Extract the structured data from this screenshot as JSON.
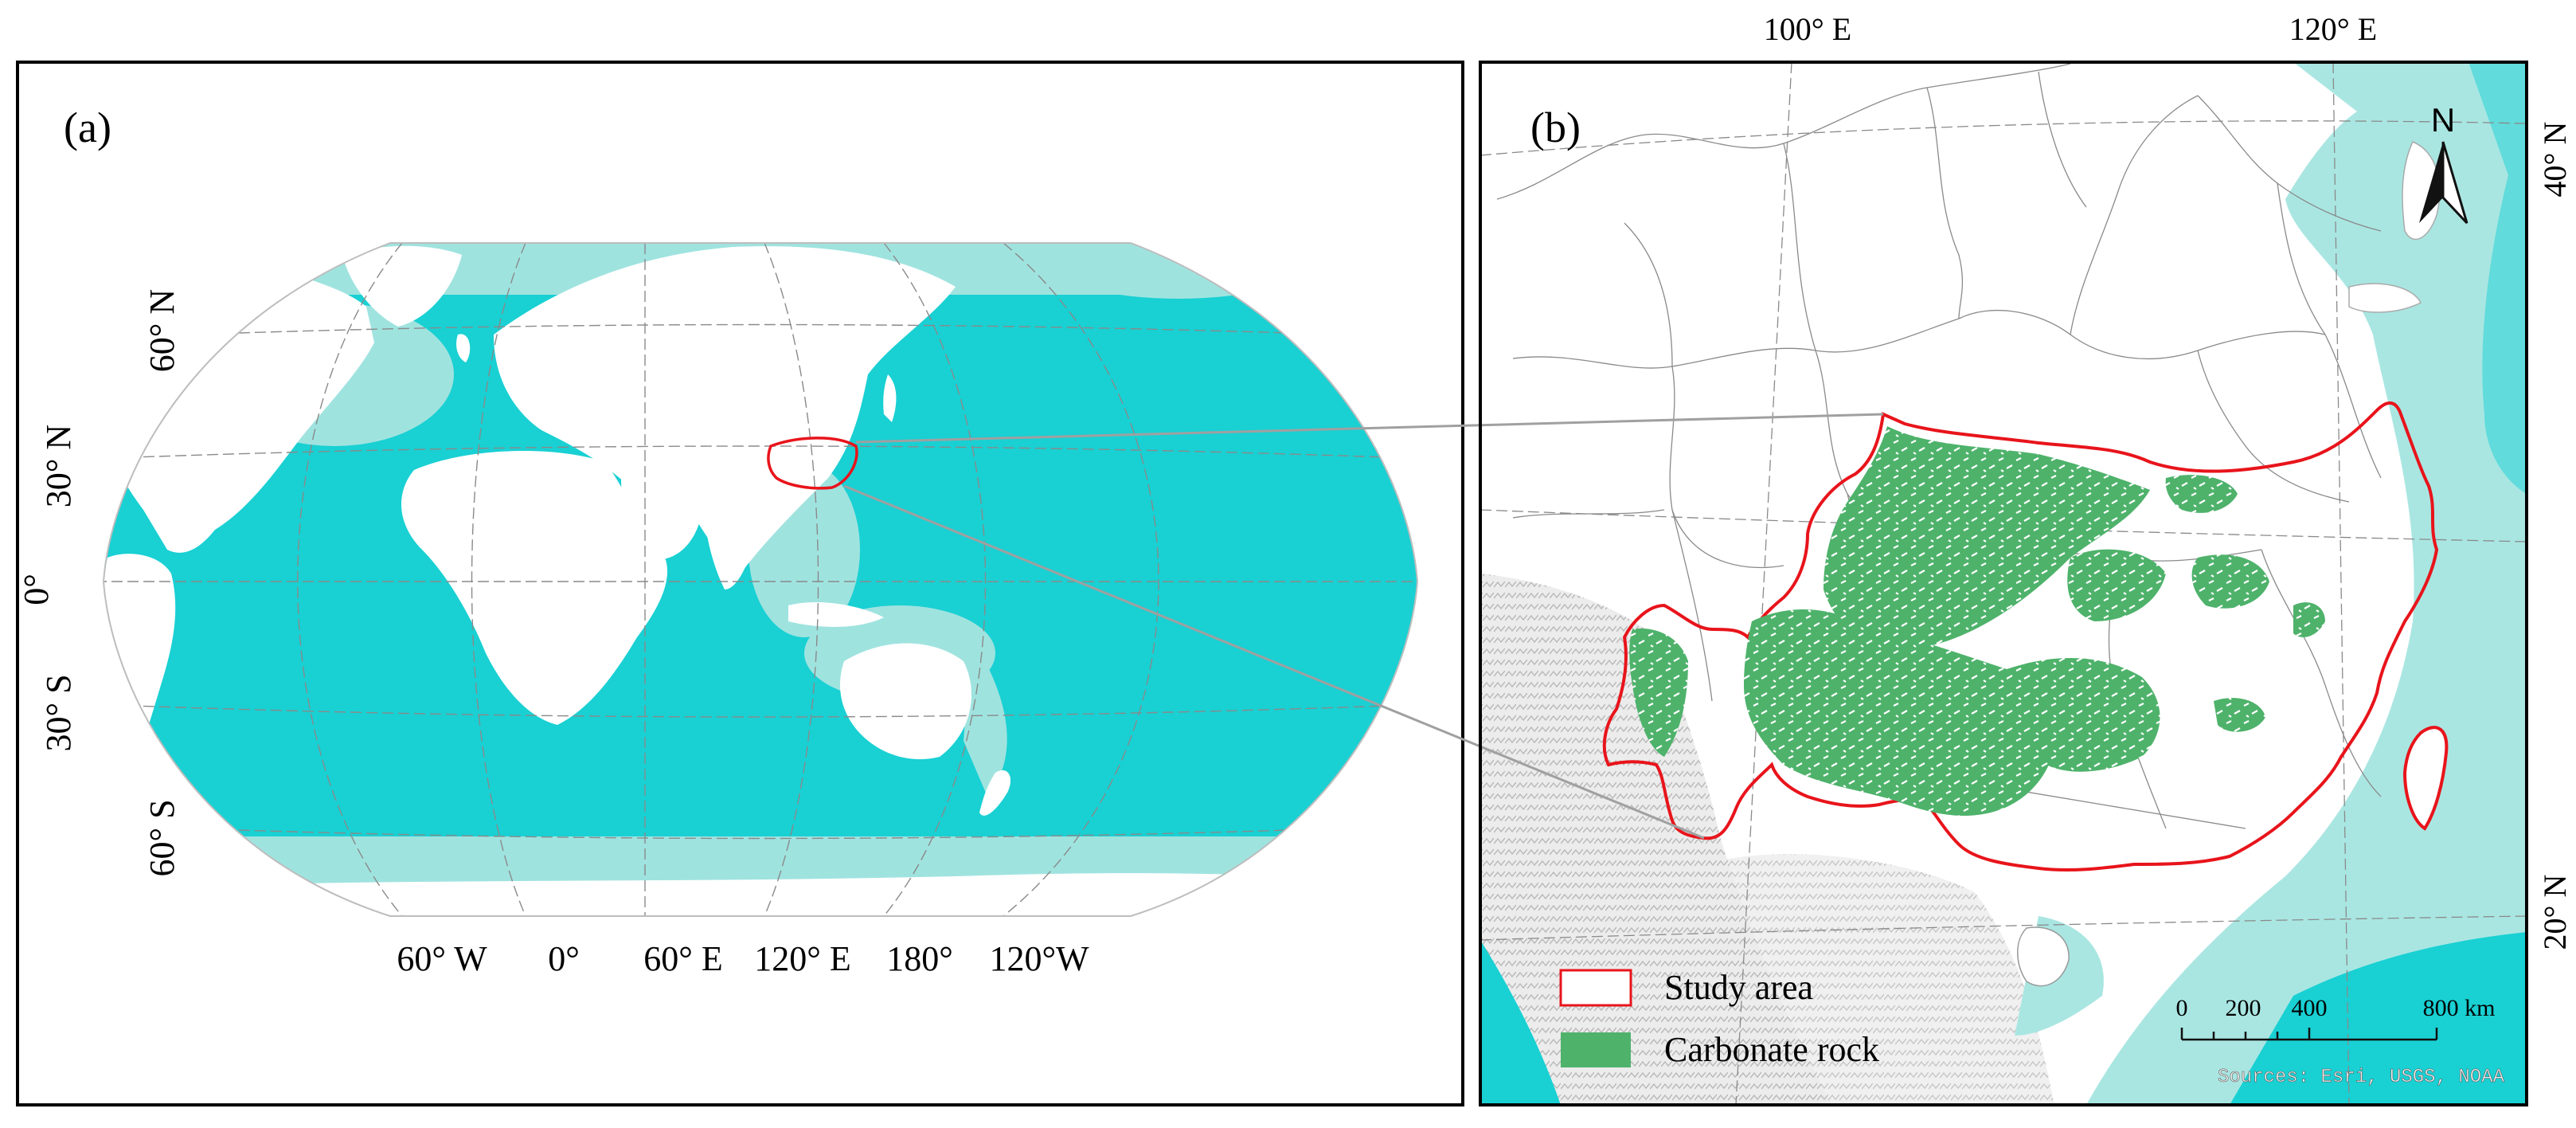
{
  "panel_a": {
    "label": "(a)",
    "lat_labels": [
      "60° N",
      "30° N",
      "0°",
      "30° S",
      "60° S"
    ],
    "lon_labels": [
      "60° W",
      "0°",
      "60° E",
      "120° E",
      "180°",
      "120°W"
    ]
  },
  "panel_b": {
    "label": "(b)",
    "top_lon_labels": [
      "100° E",
      "120° E"
    ],
    "right_lat_labels": [
      "40° N",
      "20° N"
    ],
    "north_arrow": "N",
    "legend": [
      {
        "label": "Study area",
        "symbol": "outline",
        "color": "#e8141b"
      },
      {
        "label": "Carbonate rock",
        "symbol": "fill",
        "color": "#4eb26b"
      }
    ],
    "scalebar": {
      "ticks": [
        "0",
        "200",
        "400",
        "800 km"
      ]
    },
    "credit": "Sources: Esri, USGS, NOAA"
  },
  "colors": {
    "ocean": "#19d0d3",
    "shelf": "#9fe3df",
    "land": "#ffffff",
    "study_area": "#e8141b",
    "carbonate": "#4eb26b",
    "connector": "#a0a0a0"
  }
}
